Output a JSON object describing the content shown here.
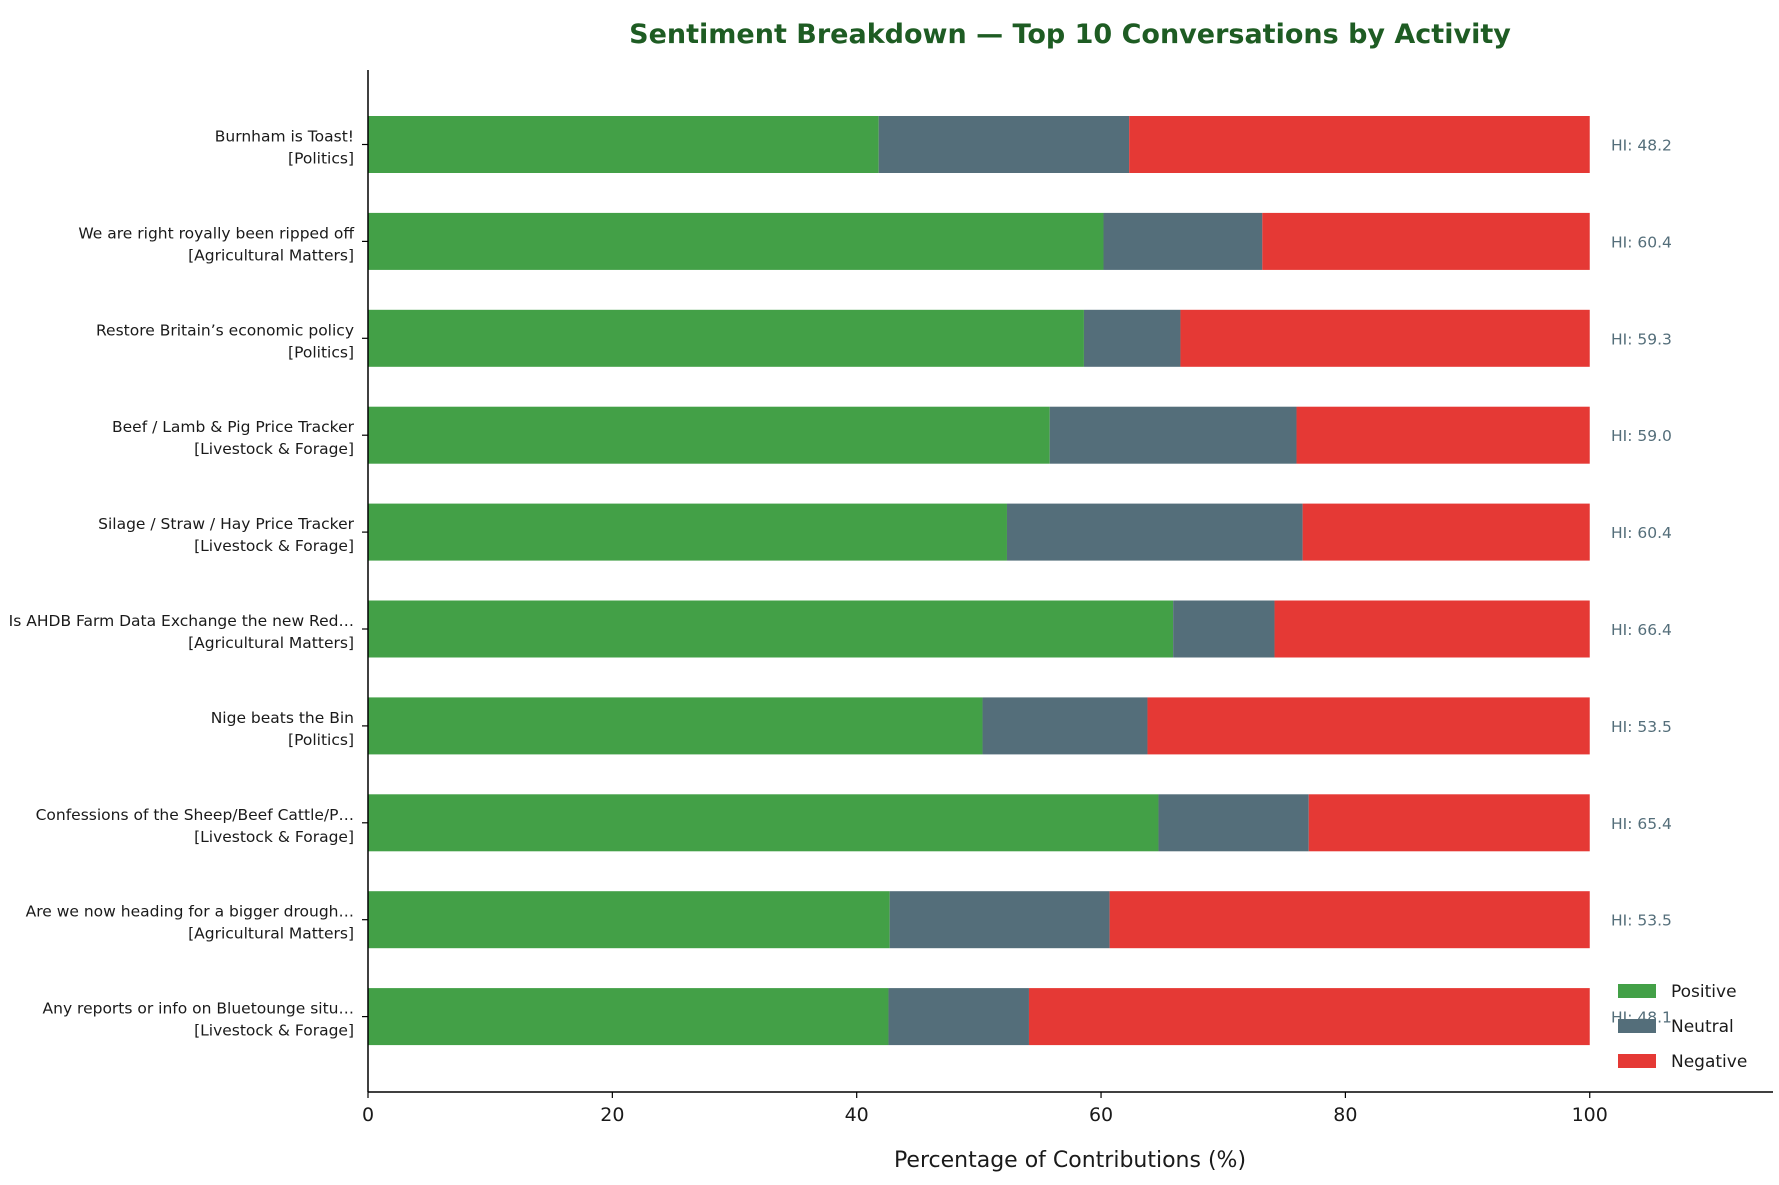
{
  "chart_data": {
    "type": "bar",
    "orientation": "horizontal",
    "stacked": true,
    "title": "Sentiment Breakdown — Top 10 Conversations by Activity",
    "xlabel": "Percentage of Contributions (%)",
    "ylabel": "",
    "xlim": [
      0,
      115
    ],
    "xticks": [
      "0",
      "20",
      "40",
      "60",
      "80",
      "100"
    ],
    "grid": false,
    "legend_position": "bottom-right",
    "colors": {
      "title": "#1e5c23",
      "Positive": "#43a047",
      "Neutral": "#546e7a",
      "Negative": "#e53935",
      "annotation": "#546e7a",
      "axis": "#000000"
    },
    "categories": [
      {
        "title": "Burnham is Toast!",
        "forum": "[Politics]"
      },
      {
        "title": "We are right royally been ripped off",
        "forum": "[Agricultural Matters]"
      },
      {
        "title": "Restore Britain’s economic policy",
        "forum": "[Politics]"
      },
      {
        "title": "Beef / Lamb & Pig Price Tracker",
        "forum": "[Livestock & Forage]"
      },
      {
        "title": "Silage / Straw / Hay Price Tracker",
        "forum": "[Livestock & Forage]"
      },
      {
        "title": "Is AHDB Farm Data Exchange the new Red…",
        "forum": "[Agricultural Matters]"
      },
      {
        "title": "Nige beats the Bin",
        "forum": "[Politics]"
      },
      {
        "title": "Confessions of the Sheep/Beef Cattle/P…",
        "forum": "[Livestock & Forage]"
      },
      {
        "title": "Are we now heading for a bigger drough…",
        "forum": "[Agricultural Matters]"
      },
      {
        "title": "Any reports or info on Bluetounge situ…",
        "forum": "[Livestock & Forage]"
      }
    ],
    "series": [
      {
        "name": "Positive",
        "values": [
          41.8,
          60.2,
          58.6,
          55.8,
          52.3,
          65.9,
          50.3,
          64.7,
          42.7,
          42.6
        ]
      },
      {
        "name": "Neutral",
        "values": [
          20.5,
          13.0,
          7.9,
          20.2,
          24.2,
          8.3,
          13.5,
          12.3,
          18.0,
          11.5
        ]
      },
      {
        "name": "Negative",
        "values": [
          37.7,
          26.8,
          33.5,
          24.0,
          23.5,
          25.8,
          36.2,
          23.0,
          39.3,
          45.9
        ]
      }
    ],
    "annotations": [
      "HI: 48.2",
      "HI: 60.4",
      "HI: 59.3",
      "HI: 59.0",
      "HI: 60.4",
      "HI: 66.4",
      "HI: 53.5",
      "HI: 65.4",
      "HI: 53.5",
      "HI: 48.1"
    ]
  }
}
